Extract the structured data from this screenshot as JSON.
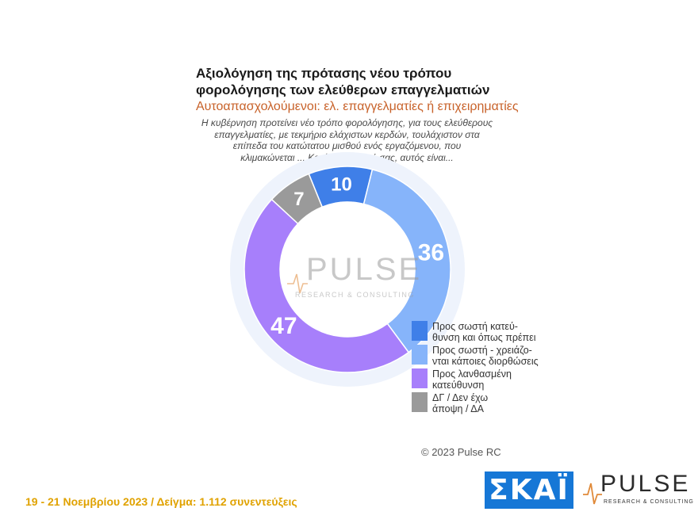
{
  "header": {
    "title_line1": "Αξιολόγηση της πρότασης νέου τρόπου",
    "title_line2": "φορολόγησης των ελεύθερων επαγγελματιών",
    "subtitle": "Αυτοαπασχολούμενοι: ελ. επαγγελματίες ή επιχειρηματίες",
    "question_line1": "Η κυβέρνηση προτείνει νέο τρόπο φορολόγησης, για τους ελεύθερους",
    "question_line2": "επαγγελματίες, με τεκμήριο ελάχιστων κερδών, τουλάχιστον στα",
    "question_line3": "επίπεδα του κατώτατου μισθού ενός εργαζόμενου, που",
    "question_line4": "κλιμακώνεται ... Κατά την άποψή σας, αυτός είναι..."
  },
  "chart_data": {
    "type": "pie",
    "variant": "donut",
    "slices": [
      {
        "label_line1": "Προς σωστή κατεύ-",
        "label_line2": "θυνση και όπως πρέπει",
        "value": 10,
        "color": "#3f7fe8"
      },
      {
        "label_line1": "Προς σωστή - χρειάζο-",
        "label_line2": "νται κάποιες διορθώσεις",
        "value": 36,
        "color": "#86b4fa"
      },
      {
        "label_line1": "Προς λανθασμένη",
        "label_line2": "κατεύθυνση",
        "value": 47,
        "color": "#a77ffb"
      },
      {
        "label_line1": "ΔΓ / Δεν έχω",
        "label_line2": "άποψη / ΔΑ",
        "value": 7,
        "color": "#9a9a9a"
      }
    ],
    "legend_position": "bottom-right"
  },
  "watermark": {
    "word": "PULSE",
    "tagline": "RESEARCH & CONSULTING"
  },
  "copyright": "© 2023 Pulse RC",
  "footer": {
    "note": "19 - 21 Νοεμβρίου 2023 / Δείγμα: 1.112 συνεντεύξεις"
  },
  "logos": {
    "skai": "ΣΚΑΪ",
    "pulse_word": "PULSE",
    "pulse_tagline": "RESEARCH & CONSULTING"
  }
}
